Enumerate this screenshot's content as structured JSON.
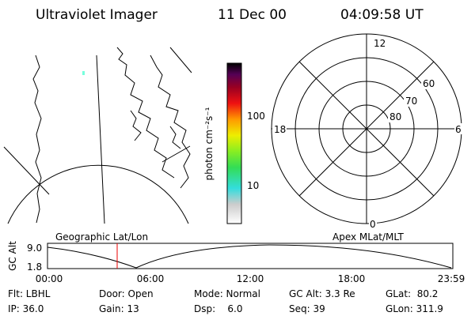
{
  "header": {
    "title": "Ultraviolet Imager",
    "date": "11 Dec 00",
    "time": "04:09:58 UT"
  },
  "colorbar": {
    "label": "photon cm⁻²s⁻¹",
    "ticks": [
      "100",
      "10"
    ]
  },
  "polar": {
    "mlt_labels": [
      "12",
      "18",
      "6",
      "0"
    ],
    "mlat_labels": [
      "60",
      "70",
      "80"
    ]
  },
  "timeline": {
    "left_label": "Geographic Lat/Lon",
    "right_label": "Apex MLat/MLT",
    "axis_label": "GC Alt",
    "yticks": [
      "9.0",
      "1.8"
    ],
    "xticks": [
      "00:00",
      "06:00",
      "12:00",
      "18:00",
      "23:59"
    ]
  },
  "info": {
    "rows": [
      [
        "Flt: LBHL",
        "Door: Open",
        "Mode: Normal",
        "GC Alt: 3.3 Re",
        "GLat:  80.2"
      ],
      [
        "IP: 36.0",
        "Gain: 13",
        "Dsp:    6.0",
        "Seq: 39",
        "GLon: 311.9"
      ]
    ]
  }
}
